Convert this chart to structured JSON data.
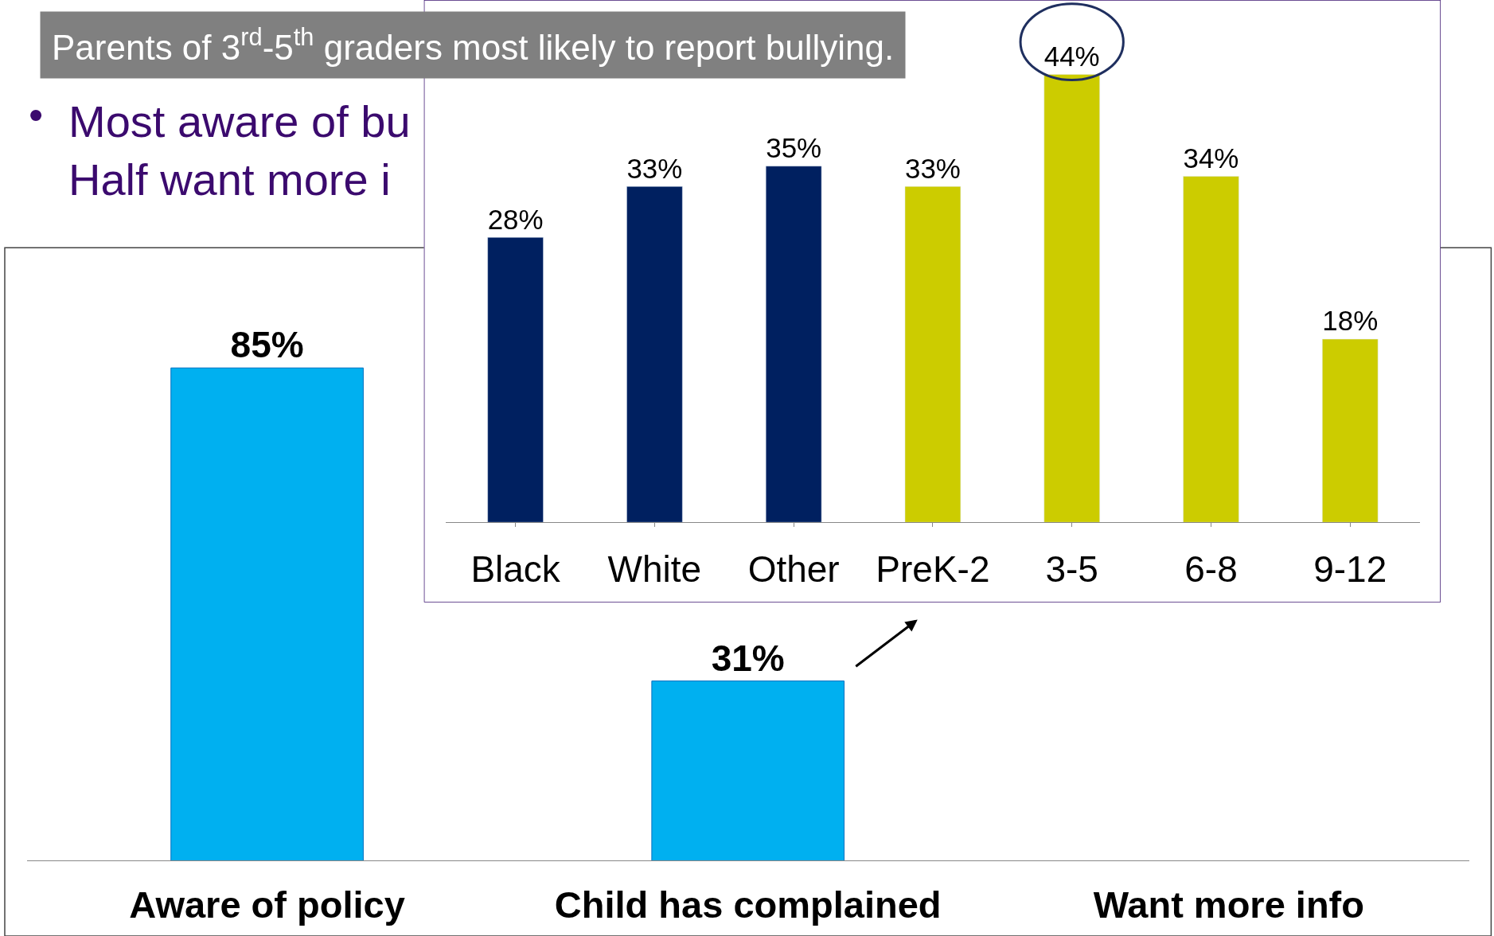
{
  "chart_data": [
    {
      "type": "bar",
      "categories": [
        "Aware of policy",
        "Child has complained",
        "Want more info"
      ],
      "values": [
        85,
        31,
        null
      ],
      "value_labels": [
        "85%",
        "31%",
        null
      ],
      "color": "#00b0f0",
      "annotations": [
        "•",
        "Most aware of bu",
        "Half want more i"
      ]
    },
    {
      "type": "bar",
      "title": "Parents of 3$^{rd}$-5$^{th}$ graders most likely to report bullying.",
      "categories": [
        "Black",
        "White",
        "Other",
        "PreK-2",
        "3-5",
        "6-8",
        "9-12"
      ],
      "values": [
        28,
        33,
        35,
        33,
        44,
        34,
        18
      ],
      "value_labels": [
        "28%",
        "33%",
        "35%",
        "33%",
        "44%",
        "34%",
        "18%"
      ],
      "colors": [
        "#002060",
        "#002060",
        "#002060",
        "#cccc00",
        "#cccc00",
        "#cccc00",
        "#cccc00"
      ]
    }
  ]
}
